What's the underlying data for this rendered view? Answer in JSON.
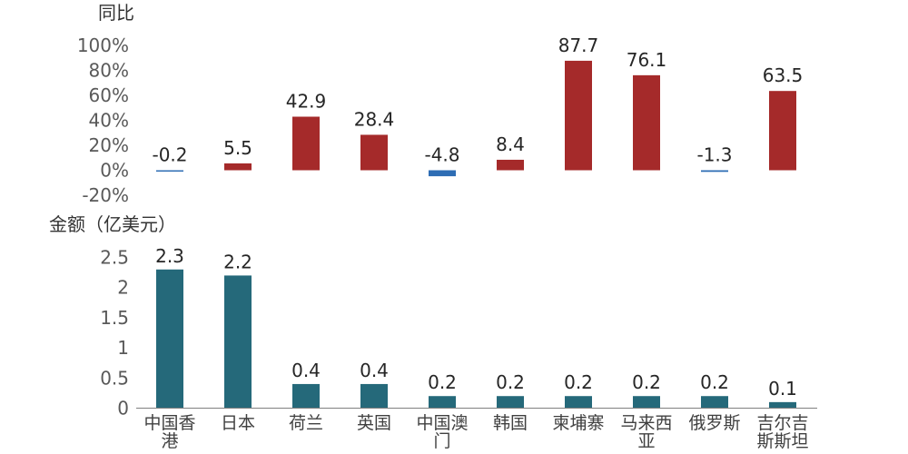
{
  "chart_data": [
    {
      "type": "bar",
      "ylabel": "同比",
      "categories": [
        "中国香港",
        "日本",
        "荷兰",
        "英国",
        "中国澳门",
        "韩国",
        "柬埔寨",
        "马来西亚",
        "俄罗斯",
        "吉尔吉斯斯坦"
      ],
      "values": [
        -0.2,
        5.5,
        42.9,
        28.4,
        -4.8,
        8.4,
        87.7,
        76.1,
        -1.3,
        63.5
      ],
      "data_labels": [
        "-0.2",
        "5.5",
        "42.9",
        "28.4",
        "-4.8",
        "8.4",
        "87.7",
        "76.1",
        "-1.3",
        "63.5"
      ],
      "ylim": [
        -20,
        100
      ],
      "yticks": [
        "100%",
        "80%",
        "60%",
        "40%",
        "20%",
        "0%",
        "-20%"
      ],
      "ytick_values": [
        100,
        80,
        60,
        40,
        20,
        0,
        -20
      ],
      "grid": false,
      "colors": {
        "positive": "#A52A2A",
        "negative": "#2E6DB4"
      }
    },
    {
      "type": "bar",
      "ylabel": "金额（亿美元）",
      "categories": [
        "中国香港",
        "日本",
        "荷兰",
        "英国",
        "中国澳门",
        "韩国",
        "柬埔寨",
        "马来西亚",
        "俄罗斯",
        "吉尔吉斯斯坦"
      ],
      "category_labels": [
        [
          "中国香",
          "港"
        ],
        [
          "日本"
        ],
        [
          "荷兰"
        ],
        [
          "英国"
        ],
        [
          "中国澳",
          "门"
        ],
        [
          "韩国"
        ],
        [
          "柬埔寨"
        ],
        [
          "马来西",
          "亚"
        ],
        [
          "俄罗斯"
        ],
        [
          "吉尔吉",
          "斯斯坦"
        ]
      ],
      "values": [
        2.3,
        2.2,
        0.4,
        0.4,
        0.2,
        0.2,
        0.2,
        0.2,
        0.2,
        0.1
      ],
      "data_labels": [
        "2.3",
        "2.2",
        "0.4",
        "0.4",
        "0.2",
        "0.2",
        "0.2",
        "0.2",
        "0.2",
        "0.1"
      ],
      "ylim": [
        0,
        2.5
      ],
      "yticks": [
        "2.5",
        "2",
        "1.5",
        "1",
        "0.5",
        "0"
      ],
      "ytick_values": [
        2.5,
        2,
        1.5,
        1,
        0.5,
        0
      ],
      "grid": false,
      "colors": {
        "bar": "#25697A",
        "axis": "#808080"
      }
    }
  ]
}
